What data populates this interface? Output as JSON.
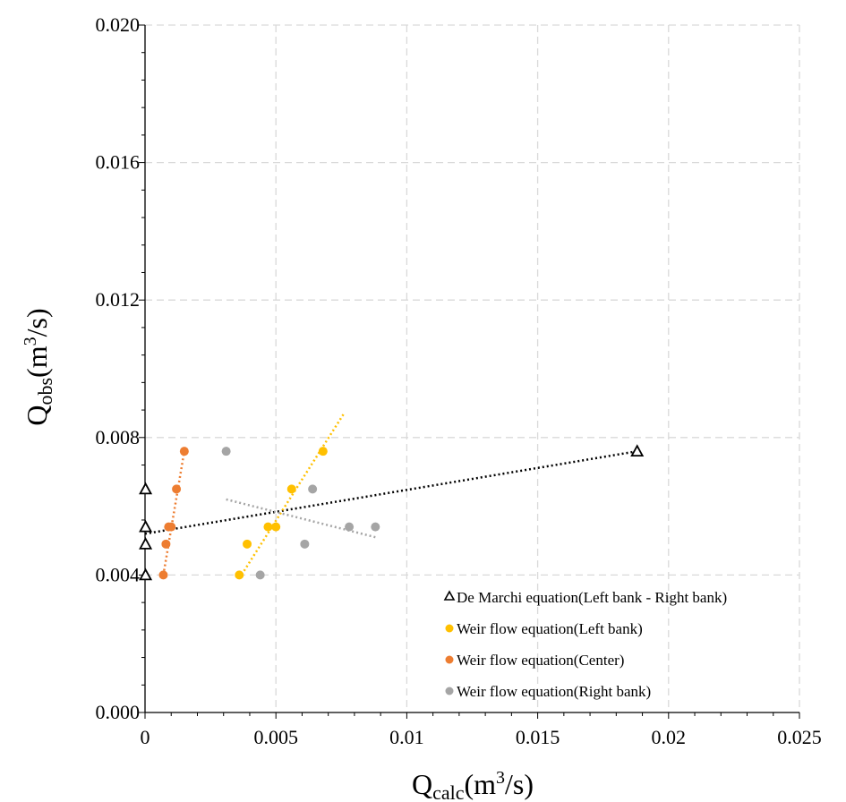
{
  "chart_data": {
    "type": "scatter",
    "title": "",
    "xlabel": {
      "main": "Q",
      "sub": "calc",
      "unit_open": "(m",
      "unit_sup": "3",
      "unit_close": "/s)"
    },
    "ylabel": {
      "main": "Q",
      "sub": "obs",
      "unit_open": "(m",
      "unit_sup": "3",
      "unit_close": "/s)"
    },
    "xlim": [
      0,
      0.025
    ],
    "ylim": [
      0,
      0.02
    ],
    "x_ticks": [
      0,
      0.005,
      0.01,
      0.015,
      0.02,
      0.025
    ],
    "x_tick_labels": [
      "0",
      "0.005",
      "0.01",
      "0.015",
      "0.02",
      "0.025"
    ],
    "y_ticks": [
      0,
      0.004,
      0.008,
      0.012,
      0.016,
      0.02
    ],
    "y_tick_labels": [
      "0.000",
      "0.004",
      "0.008",
      "0.012",
      "0.016",
      "0.020"
    ],
    "grid": true,
    "legend_position": "bottom-right",
    "series": [
      {
        "name": "De Marchi equation(Left bank - Right bank)",
        "marker": "triangle-open",
        "color": "#000000",
        "x": [
          2e-05,
          2e-05,
          2e-05,
          2e-05,
          0.0188
        ],
        "y": [
          0.004,
          0.0049,
          0.0054,
          0.0065,
          0.0076
        ],
        "trendline": {
          "x": [
            0.0,
            0.0188
          ],
          "y": [
            0.0052,
            0.0076
          ]
        }
      },
      {
        "name": "Weir flow equation(Left bank)",
        "marker": "circle",
        "color": "#FFC000",
        "x": [
          0.0036,
          0.0039,
          0.0047,
          0.005,
          0.0056,
          0.0068
        ],
        "y": [
          0.004,
          0.0049,
          0.0054,
          0.0054,
          0.0065,
          0.0076
        ],
        "trendline": {
          "x": [
            0.0036,
            0.0076
          ],
          "y": [
            0.0039,
            0.0087
          ]
        }
      },
      {
        "name": "Weir flow equation(Center)",
        "marker": "circle",
        "color": "#ED7D31",
        "x": [
          0.0007,
          0.0008,
          0.0009,
          0.001,
          0.0012,
          0.0015
        ],
        "y": [
          0.004,
          0.0049,
          0.0054,
          0.0054,
          0.0065,
          0.0076
        ],
        "trendline": {
          "x": [
            0.0007,
            0.0015
          ],
          "y": [
            0.004,
            0.0076
          ]
        }
      },
      {
        "name": "Weir flow equation(Right bank)",
        "marker": "circle",
        "color": "#A5A5A5",
        "x": [
          0.0031,
          0.0044,
          0.0061,
          0.0064,
          0.0078,
          0.0088
        ],
        "y": [
          0.0076,
          0.004,
          0.0049,
          0.0065,
          0.0054,
          0.0054
        ],
        "trendline": {
          "x": [
            0.0031,
            0.0088
          ],
          "y": [
            0.0062,
            0.0051
          ]
        }
      }
    ]
  }
}
